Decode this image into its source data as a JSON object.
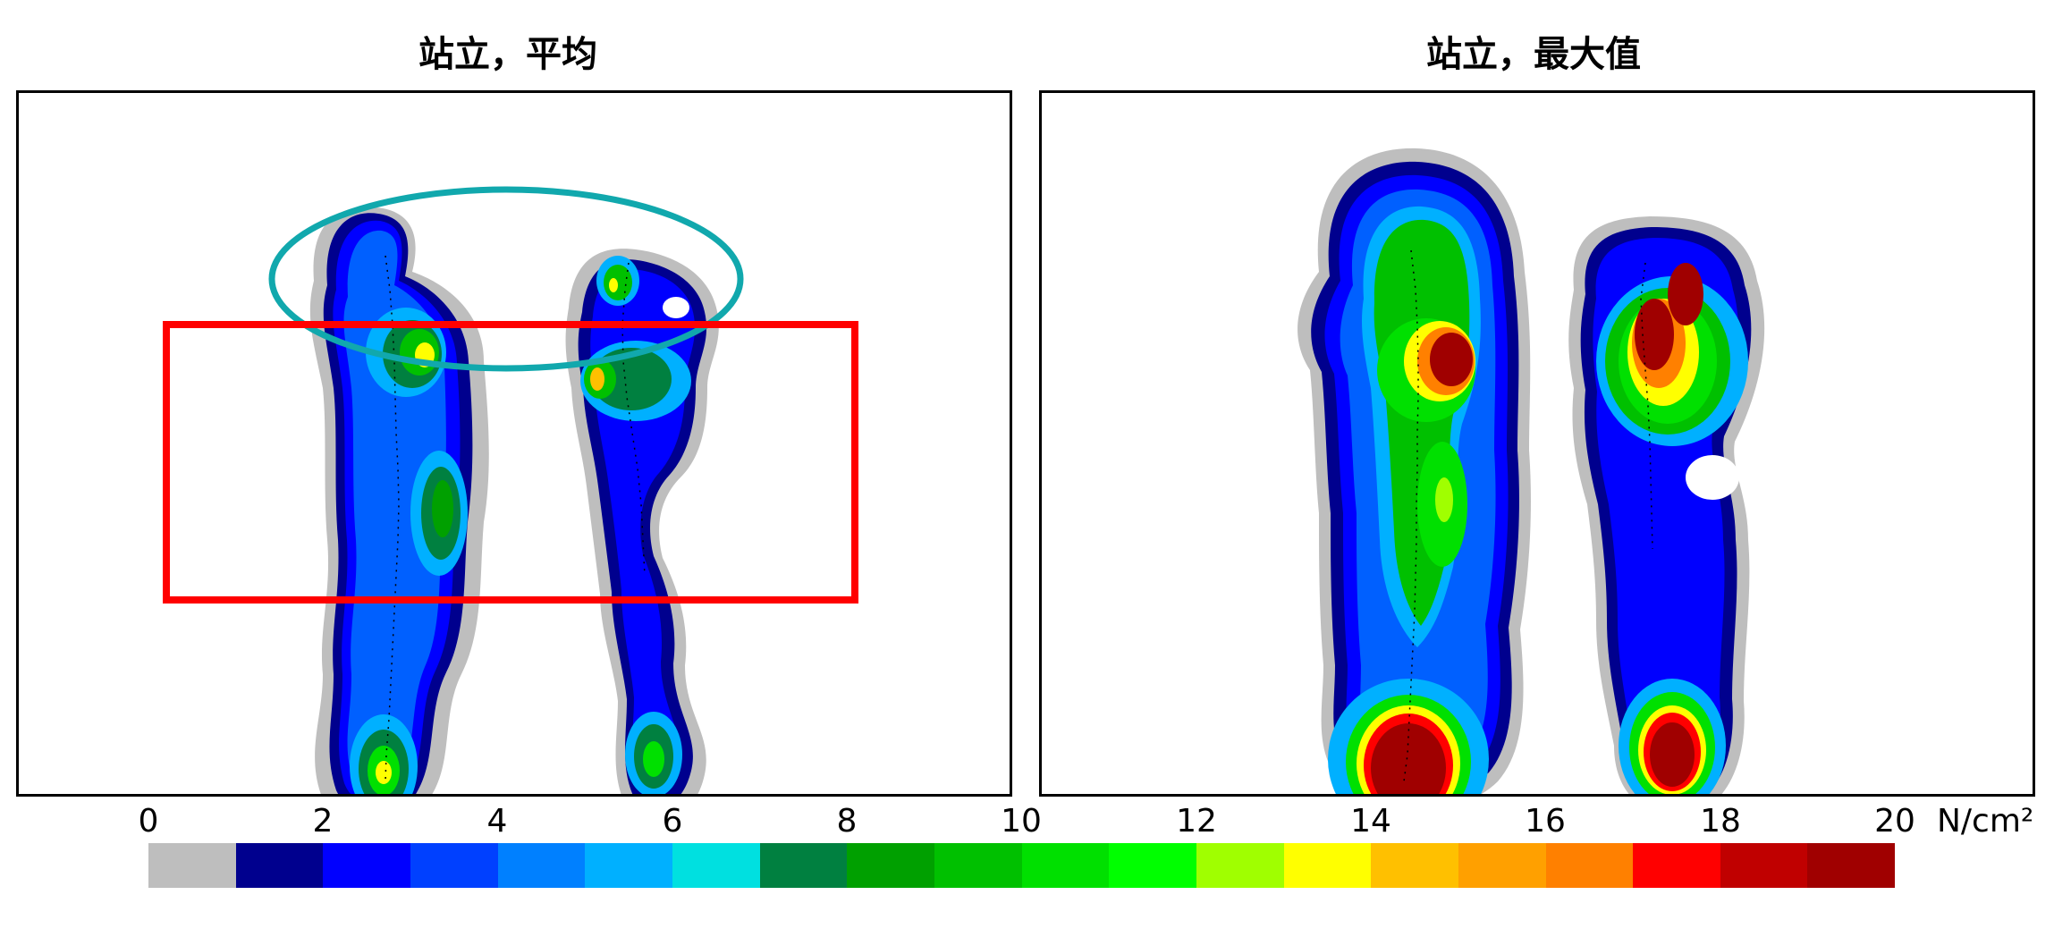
{
  "chart_data": [
    {
      "type": "heatmap",
      "title": "站立，平均",
      "value_range": [
        0,
        20
      ],
      "annotations": [
        "teal-ellipse-forefoot",
        "red-rectangle-midfoot"
      ]
    },
    {
      "type": "heatmap",
      "title": "站立，最大值",
      "value_range": [
        0,
        20
      ]
    }
  ],
  "colorbar": {
    "ticks": [
      "0",
      "2",
      "4",
      "6",
      "8",
      "10",
      "12",
      "14",
      "16",
      "18",
      "20"
    ],
    "unit": "N/cm²",
    "colors": [
      "#bebebe",
      "#00008e",
      "#0000ff",
      "#0040ff",
      "#0080ff",
      "#00b0ff",
      "#00e0e0",
      "#008040",
      "#00a000",
      "#00c000",
      "#00e000",
      "#00ff00",
      "#a0ff00",
      "#ffff00",
      "#ffc000",
      "#ffa000",
      "#ff8000",
      "#ff0000",
      "#c00000",
      "#a00000"
    ]
  },
  "annotation_colors": {
    "ellipse": "#11a8ad",
    "rectangle": "#ff0000"
  }
}
